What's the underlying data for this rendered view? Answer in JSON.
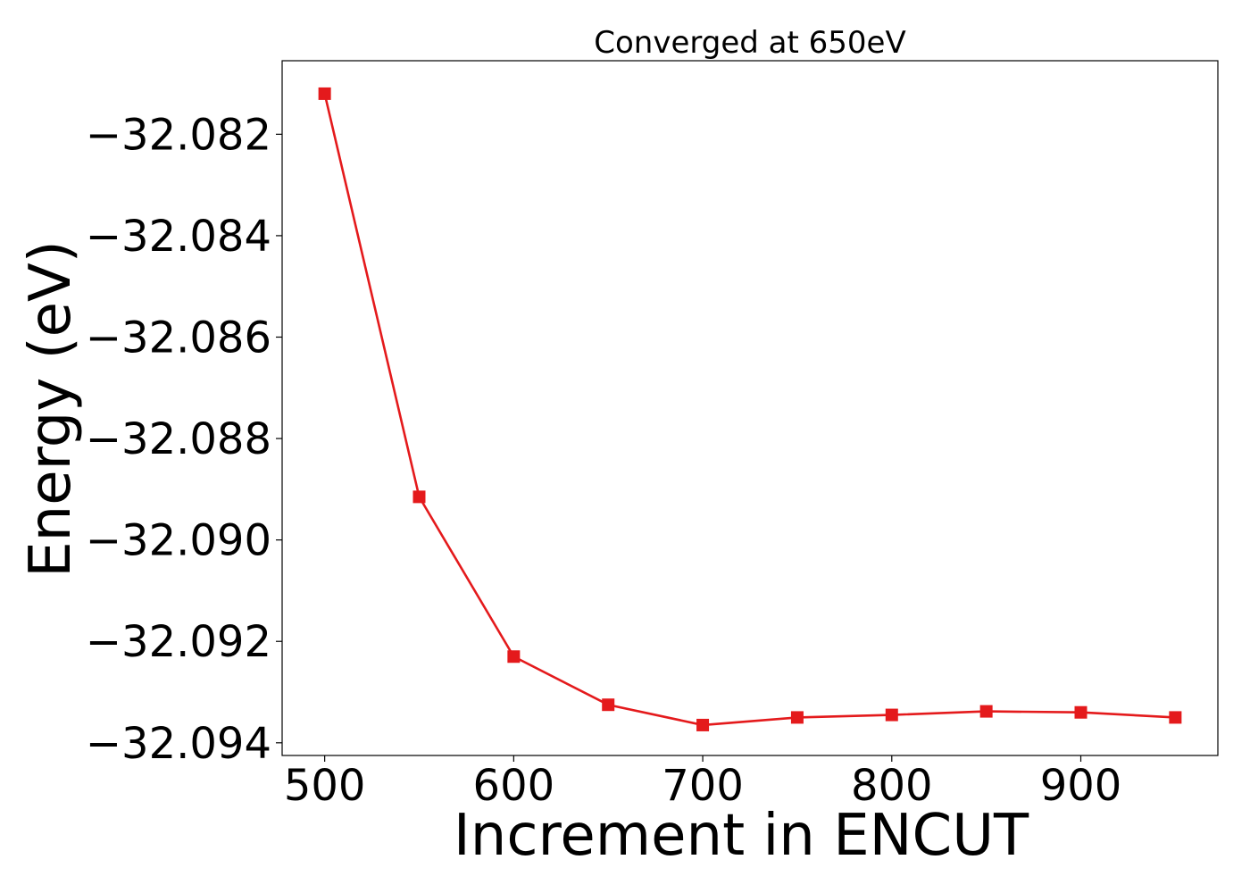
{
  "chart_data": {
    "type": "line",
    "title": "Converged at 650eV",
    "xlabel": "Increment in ENCUT",
    "ylabel": "Energy (eV)",
    "x": [
      500,
      550,
      600,
      650,
      700,
      750,
      800,
      850,
      900,
      950
    ],
    "series": [
      {
        "values": [
          -32.0812,
          -32.08915,
          -32.0923,
          -32.09325,
          -32.09365,
          -32.0935,
          -32.09345,
          -32.09338,
          -32.0934,
          -32.0935
        ],
        "color": "#e41a1c",
        "marker": "square"
      }
    ],
    "xlim": [
      477.5,
      972.5
    ],
    "ylim": [
      -32.09425,
      -32.08055
    ],
    "xticks": [
      500,
      600,
      700,
      800,
      900
    ],
    "xtick_labels": [
      "500",
      "600",
      "700",
      "800",
      "900"
    ],
    "yticks": [
      -32.082,
      -32.084,
      -32.086,
      -32.088,
      -32.09,
      -32.092,
      -32.094
    ],
    "ytick_labels": [
      "−32.082",
      "−32.084",
      "−32.086",
      "−32.088",
      "−32.090",
      "−32.092",
      "−32.094"
    ],
    "grid": false,
    "legend": "none"
  }
}
